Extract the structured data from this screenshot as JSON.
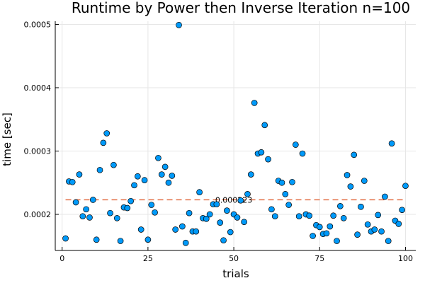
{
  "chart_data": {
    "type": "scatter",
    "title": "Runtime by Power then Inverse Iteration  n=100",
    "xlabel": "trials",
    "ylabel": "time [sec]",
    "xlim": [
      -2,
      103
    ],
    "ylim": [
      0.000143,
      0.000505
    ],
    "xticks": [
      0,
      25,
      50,
      75,
      100
    ],
    "xtick_labels": [
      "0",
      "25",
      "50",
      "75",
      "100"
    ],
    "yticks": [
      0.0002,
      0.0003,
      0.0004,
      0.0005
    ],
    "ytick_labels": [
      "0.0002",
      "0.0003",
      "0.0004",
      "0.0005"
    ],
    "grid": true,
    "legend": "none",
    "colors": {
      "points": "#009AFA",
      "mean_line": "#E26F46"
    },
    "mean": {
      "value": 0.000223,
      "label": "0.000223"
    },
    "series": [
      {
        "x": [
          1,
          2,
          3,
          4,
          5,
          6,
          7,
          8,
          9,
          10,
          11,
          12,
          13,
          14,
          15,
          16,
          17,
          18,
          19,
          20,
          21,
          22,
          23,
          24,
          25,
          26,
          27,
          28,
          29,
          30,
          31,
          32,
          33,
          34,
          35,
          36,
          37,
          38,
          39,
          40,
          41,
          42,
          43,
          44,
          45,
          46,
          47,
          48,
          49,
          50,
          51,
          52,
          53,
          54,
          55,
          56,
          57,
          58,
          59,
          60,
          61,
          62,
          63,
          64,
          65,
          66,
          67,
          68,
          69,
          70,
          71,
          72,
          73,
          74,
          75,
          76,
          77,
          78,
          79,
          80,
          81,
          82,
          83,
          84,
          85,
          86,
          87,
          88,
          89,
          90,
          91,
          92,
          93,
          94,
          95,
          96,
          97,
          98,
          99,
          100
        ],
        "y": [
          0.000162,
          0.000252,
          0.000251,
          0.000219,
          0.000263,
          0.000197,
          0.000208,
          0.000195,
          0.000223,
          0.00016,
          0.00027,
          0.000313,
          0.000328,
          0.000202,
          0.000278,
          0.000194,
          0.000158,
          0.000211,
          0.00021,
          0.000221,
          0.000246,
          0.00026,
          0.000176,
          0.000254,
          0.00016,
          0.000215,
          0.000203,
          0.000289,
          0.000263,
          0.000275,
          0.00025,
          0.000261,
          0.000176,
          0.000499,
          0.000181,
          0.000155,
          0.000202,
          0.000173,
          0.000173,
          0.000235,
          0.000194,
          0.000193,
          0.0002,
          0.000216,
          0.000216,
          0.000187,
          0.000159,
          0.000206,
          0.000172,
          0.0002,
          0.000195,
          0.000222,
          0.000188,
          0.000232,
          0.000263,
          0.000376,
          0.000296,
          0.000298,
          0.000341,
          0.000287,
          0.000208,
          0.000197,
          0.000253,
          0.00025,
          0.000232,
          0.000215,
          0.000251,
          0.00031,
          0.000197,
          0.000296,
          0.0002,
          0.000198,
          0.000166,
          0.000183,
          0.00018,
          0.000169,
          0.00017,
          0.000181,
          0.000198,
          0.000158,
          0.000213,
          0.000194,
          0.000262,
          0.000244,
          0.000294,
          0.000168,
          0.000212,
          0.000253,
          0.000184,
          0.000173,
          0.000176,
          0.000199,
          0.000173,
          0.000228,
          0.000158,
          0.000312,
          0.00019,
          0.000185,
          0.000207,
          0.000245
        ]
      }
    ]
  }
}
